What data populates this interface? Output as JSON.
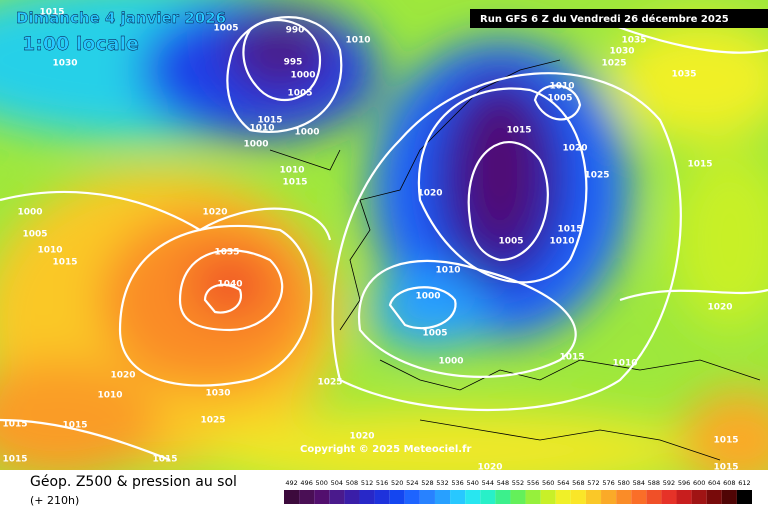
{
  "header": {
    "date": "Dimanche 4 janvier 2026",
    "time": "1:00 locale",
    "run": "Run GFS 6 Z du Vendredi 26 décembre 2025"
  },
  "copyright": "Copyright © 2025 Meteociel.fr",
  "footer": {
    "title": "Géop. Z500 & pression au sol",
    "lead": "(+ 210h)"
  },
  "isobar_labels": [
    1015,
    1005,
    990,
    1010,
    1030,
    995,
    1000,
    1005,
    1015,
    1010,
    1000,
    1000,
    1010,
    1015,
    1000,
    1020,
    1005,
    1010,
    1015,
    1035,
    1040,
    1020,
    1010,
    1030,
    1025,
    1015,
    1015,
    1015,
    1015,
    1025,
    1020,
    1020,
    1035,
    1030,
    1025,
    1035,
    1010,
    1005,
    1015,
    1020,
    1025,
    1015,
    1020,
    1015,
    1010,
    1005,
    1010,
    1000,
    1005,
    1000,
    1015,
    1010,
    1020,
    1015,
    1015
  ],
  "legend": {
    "ticks": [
      492,
      496,
      500,
      504,
      508,
      512,
      516,
      520,
      524,
      528,
      532,
      536,
      540,
      544,
      548,
      552,
      556,
      560,
      564,
      568,
      572,
      576,
      580,
      584,
      588,
      592,
      596,
      600,
      604,
      608,
      612
    ],
    "colors": [
      "#3c0a3c",
      "#4a0f55",
      "#520f6e",
      "#4a1a8c",
      "#3a1ea8",
      "#2828c8",
      "#1e32dc",
      "#1446f0",
      "#1e64ff",
      "#2882ff",
      "#28a0ff",
      "#28c8ff",
      "#28e6f0",
      "#28f0c8",
      "#3cf08c",
      "#64f05a",
      "#96f03c",
      "#c8f028",
      "#f0f028",
      "#fae628",
      "#fac828",
      "#faaa28",
      "#fa8c28",
      "#fa6e28",
      "#f05028",
      "#e63228",
      "#c81e1e",
      "#a01414",
      "#780a0a",
      "#500505",
      "#000000"
    ]
  }
}
